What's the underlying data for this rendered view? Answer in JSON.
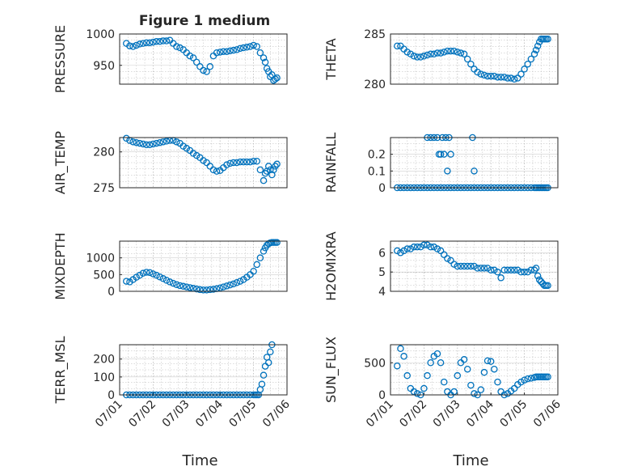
{
  "figure": {
    "title": "Figure 1 medium"
  },
  "style": {
    "marker_color": "#0072BD",
    "grid_color": "#b8b8b8",
    "axis_color": "#262626"
  },
  "chart_data": [
    {
      "type": "scatter",
      "ylabel": "PRESSURE",
      "ylim": [
        920,
        1000
      ],
      "yticks": [
        950,
        1000
      ],
      "xlim": [
        0,
        5
      ],
      "xticks": [],
      "xlabel": "",
      "series": [
        {
          "x": [
            0.2,
            0.3,
            0.4,
            0.5,
            0.6,
            0.7,
            0.8,
            0.9,
            1.0,
            1.1,
            1.2,
            1.3,
            1.4,
            1.5,
            1.6,
            1.7,
            1.8,
            1.9,
            2.0,
            2.1,
            2.2,
            2.3,
            2.4,
            2.5,
            2.6,
            2.7,
            2.8,
            2.9,
            3.0,
            3.1,
            3.2,
            3.3,
            3.4,
            3.5,
            3.6,
            3.7,
            3.8,
            3.9,
            4.0,
            4.1,
            4.2,
            4.3,
            4.35,
            4.4,
            4.45,
            4.5,
            4.55,
            4.6,
            4.65,
            4.7
          ],
          "y": [
            985,
            981,
            980,
            982,
            984,
            985,
            986,
            986,
            987,
            988,
            988,
            989,
            989,
            990,
            985,
            980,
            978,
            975,
            970,
            965,
            962,
            955,
            948,
            942,
            940,
            948,
            965,
            970,
            971,
            972,
            972,
            973,
            974,
            975,
            977,
            978,
            979,
            980,
            982,
            980,
            970,
            962,
            955,
            945,
            940,
            932,
            935,
            926,
            928,
            930
          ]
        }
      ]
    },
    {
      "type": "scatter",
      "ylabel": "THETA",
      "ylim": [
        280,
        285
      ],
      "yticks": [
        280,
        285
      ],
      "xlim": [
        0,
        5
      ],
      "xticks": [],
      "xlabel": "",
      "series": [
        {
          "x": [
            0.2,
            0.3,
            0.4,
            0.5,
            0.6,
            0.7,
            0.8,
            0.9,
            1.0,
            1.1,
            1.2,
            1.3,
            1.4,
            1.5,
            1.6,
            1.7,
            1.8,
            1.9,
            2.0,
            2.1,
            2.2,
            2.3,
            2.4,
            2.5,
            2.6,
            2.7,
            2.8,
            2.9,
            3.0,
            3.1,
            3.2,
            3.3,
            3.4,
            3.5,
            3.6,
            3.7,
            3.8,
            3.9,
            4.0,
            4.1,
            4.2,
            4.3,
            4.35,
            4.4,
            4.45,
            4.5,
            4.55,
            4.6,
            4.65,
            4.7
          ],
          "y": [
            283.8,
            283.8,
            283.5,
            283.2,
            283.0,
            282.8,
            282.7,
            282.7,
            282.8,
            282.9,
            283.0,
            283.0,
            283.1,
            283.1,
            283.2,
            283.3,
            283.3,
            283.3,
            283.2,
            283.1,
            283.0,
            282.5,
            282.0,
            281.5,
            281.2,
            281.0,
            280.9,
            280.8,
            280.8,
            280.8,
            280.7,
            280.7,
            280.7,
            280.6,
            280.6,
            280.5,
            280.6,
            281.0,
            281.5,
            282.0,
            282.5,
            283.0,
            283.4,
            283.8,
            284.2,
            284.5,
            284.5,
            284.5,
            284.5,
            284.5
          ]
        }
      ]
    },
    {
      "type": "scatter",
      "ylabel": "AIR_TEMP",
      "ylim": [
        275,
        282
      ],
      "yticks": [
        275,
        280
      ],
      "xlim": [
        0,
        5
      ],
      "xticks": [],
      "xlabel": "",
      "series": [
        {
          "x": [
            0.2,
            0.3,
            0.4,
            0.5,
            0.6,
            0.7,
            0.8,
            0.9,
            1.0,
            1.1,
            1.2,
            1.3,
            1.4,
            1.5,
            1.6,
            1.7,
            1.8,
            1.9,
            2.0,
            2.1,
            2.2,
            2.3,
            2.4,
            2.5,
            2.6,
            2.7,
            2.8,
            2.9,
            3.0,
            3.1,
            3.2,
            3.3,
            3.4,
            3.5,
            3.6,
            3.7,
            3.8,
            3.9,
            4.0,
            4.1,
            4.2,
            4.3,
            4.35,
            4.4,
            4.45,
            4.5,
            4.55,
            4.6,
            4.65,
            4.7
          ],
          "y": [
            281.9,
            281.6,
            281.4,
            281.3,
            281.2,
            281.1,
            281.0,
            281.0,
            281.1,
            281.2,
            281.3,
            281.4,
            281.5,
            281.6,
            281.6,
            281.4,
            281.2,
            280.8,
            280.5,
            280.2,
            279.8,
            279.5,
            279.2,
            278.8,
            278.5,
            278.0,
            277.5,
            277.3,
            277.4,
            277.8,
            278.2,
            278.4,
            278.5,
            278.5,
            278.6,
            278.6,
            278.6,
            278.6,
            278.7,
            278.7,
            277.5,
            276.0,
            277.0,
            277.3,
            278.0,
            277.5,
            276.8,
            277.5,
            278.0,
            278.3
          ]
        }
      ]
    },
    {
      "type": "scatter",
      "ylabel": "RAINFALL",
      "ylim": [
        0,
        0.3
      ],
      "yticks": [
        0,
        0.1,
        0.2
      ],
      "xlim": [
        0,
        5
      ],
      "xticks": [],
      "xlabel": "",
      "series": [
        {
          "x": [
            0.2,
            0.3,
            0.4,
            0.5,
            0.6,
            0.7,
            0.8,
            0.9,
            1.0,
            1.1,
            1.2,
            1.3,
            1.4,
            1.5,
            1.6,
            1.7,
            1.8,
            1.9,
            2.0,
            2.1,
            2.2,
            2.3,
            2.4,
            2.5,
            2.6,
            2.7,
            2.8,
            2.9,
            3.0,
            3.1,
            3.2,
            3.3,
            3.4,
            3.5,
            3.6,
            3.7,
            3.8,
            3.9,
            4.0,
            4.1,
            4.2,
            4.3,
            4.35,
            4.4,
            4.45,
            4.5,
            4.55,
            4.6,
            4.65,
            4.7,
            1.1,
            1.2,
            1.3,
            1.4,
            1.45,
            1.5,
            1.55,
            1.6,
            1.65,
            1.7,
            1.75,
            1.8,
            2.45,
            2.5
          ],
          "y": [
            0,
            0,
            0,
            0,
            0,
            0,
            0,
            0,
            0,
            0,
            0,
            0,
            0,
            0,
            0,
            0,
            0,
            0,
            0,
            0,
            0,
            0,
            0,
            0,
            0,
            0,
            0,
            0,
            0,
            0,
            0,
            0,
            0,
            0,
            0,
            0,
            0,
            0,
            0,
            0,
            0,
            0,
            0,
            0,
            0,
            0,
            0,
            0,
            0,
            0,
            0.3,
            0.3,
            0.3,
            0.3,
            0.2,
            0.2,
            0.3,
            0.2,
            0.3,
            0.1,
            0.3,
            0.2,
            0.3,
            0.1
          ]
        }
      ]
    },
    {
      "type": "scatter",
      "ylabel": "MIXDEPTH",
      "ylim": [
        0,
        1500
      ],
      "yticks": [
        0,
        500,
        1000
      ],
      "xlim": [
        0,
        5
      ],
      "xticks": [],
      "xlabel": "",
      "series": [
        {
          "x": [
            0.2,
            0.3,
            0.4,
            0.5,
            0.6,
            0.7,
            0.8,
            0.9,
            1.0,
            1.1,
            1.2,
            1.3,
            1.4,
            1.5,
            1.6,
            1.7,
            1.8,
            1.9,
            2.0,
            2.1,
            2.2,
            2.3,
            2.4,
            2.5,
            2.6,
            2.7,
            2.8,
            2.9,
            3.0,
            3.1,
            3.2,
            3.3,
            3.4,
            3.5,
            3.6,
            3.7,
            3.8,
            3.9,
            4.0,
            4.1,
            4.2,
            4.3,
            4.35,
            4.4,
            4.45,
            4.5,
            4.55,
            4.6,
            4.65,
            4.7
          ],
          "y": [
            300,
            280,
            350,
            420,
            480,
            540,
            570,
            560,
            520,
            480,
            430,
            380,
            330,
            280,
            240,
            200,
            170,
            150,
            130,
            110,
            90,
            70,
            50,
            40,
            40,
            50,
            60,
            80,
            100,
            130,
            160,
            190,
            220,
            260,
            300,
            350,
            420,
            500,
            600,
            800,
            1000,
            1200,
            1300,
            1380,
            1420,
            1450,
            1460,
            1460,
            1460,
            1460
          ]
        }
      ]
    },
    {
      "type": "scatter",
      "ylabel": "H2OMIXRA",
      "ylim": [
        4,
        6.6
      ],
      "yticks": [
        4,
        5,
        6
      ],
      "xlim": [
        0,
        5
      ],
      "xticks": [],
      "xlabel": "",
      "series": [
        {
          "x": [
            0.2,
            0.3,
            0.4,
            0.5,
            0.6,
            0.7,
            0.8,
            0.9,
            1.0,
            1.1,
            1.2,
            1.3,
            1.4,
            1.5,
            1.6,
            1.7,
            1.8,
            1.9,
            2.0,
            2.1,
            2.2,
            2.3,
            2.4,
            2.5,
            2.6,
            2.7,
            2.8,
            2.9,
            3.0,
            3.1,
            3.2,
            3.3,
            3.4,
            3.5,
            3.6,
            3.7,
            3.8,
            3.9,
            4.0,
            4.1,
            4.2,
            4.3,
            4.35,
            4.4,
            4.45,
            4.5,
            4.55,
            4.6,
            4.65,
            4.7
          ],
          "y": [
            6.1,
            6.0,
            6.1,
            6.2,
            6.2,
            6.3,
            6.3,
            6.3,
            6.4,
            6.4,
            6.3,
            6.3,
            6.2,
            6.1,
            5.9,
            5.7,
            5.6,
            5.4,
            5.3,
            5.3,
            5.3,
            5.3,
            5.3,
            5.3,
            5.2,
            5.2,
            5.2,
            5.2,
            5.1,
            5.1,
            5.0,
            4.7,
            5.1,
            5.1,
            5.1,
            5.1,
            5.1,
            5.0,
            5.0,
            5.0,
            5.1,
            5.1,
            5.2,
            4.8,
            4.6,
            4.5,
            4.4,
            4.3,
            4.3,
            4.3
          ]
        }
      ]
    },
    {
      "type": "scatter",
      "ylabel": "TERR_MSL",
      "ylim": [
        0,
        280
      ],
      "yticks": [
        0,
        100,
        200
      ],
      "xlim": [
        0,
        5
      ],
      "xticks": [
        0,
        1,
        2,
        3,
        4,
        5
      ],
      "xticklabels": [
        "07/01",
        "07/02",
        "07/03",
        "07/04",
        "07/05",
        "07/06"
      ],
      "xlabel": "Time",
      "series": [
        {
          "x": [
            0.2,
            0.3,
            0.4,
            0.5,
            0.6,
            0.7,
            0.8,
            0.9,
            1.0,
            1.1,
            1.2,
            1.3,
            1.4,
            1.5,
            1.6,
            1.7,
            1.8,
            1.9,
            2.0,
            2.1,
            2.2,
            2.3,
            2.4,
            2.5,
            2.6,
            2.7,
            2.8,
            2.9,
            3.0,
            3.1,
            3.2,
            3.3,
            3.4,
            3.5,
            3.6,
            3.7,
            3.8,
            3.9,
            4.0,
            4.05,
            4.1,
            4.15,
            4.2,
            4.25,
            4.3,
            4.35,
            4.4,
            4.45,
            4.5,
            4.55
          ],
          "y": [
            0,
            0,
            0,
            0,
            0,
            0,
            0,
            0,
            0,
            0,
            0,
            0,
            0,
            0,
            0,
            0,
            0,
            0,
            0,
            0,
            0,
            0,
            0,
            0,
            0,
            0,
            0,
            0,
            0,
            0,
            0,
            0,
            0,
            0,
            0,
            0,
            0,
            0,
            0,
            0,
            0,
            0,
            30,
            60,
            110,
            160,
            210,
            180,
            240,
            280
          ]
        }
      ]
    },
    {
      "type": "scatter",
      "ylabel": "SUN_FLUX",
      "ylim": [
        0,
        780
      ],
      "yticks": [
        0,
        500
      ],
      "xlim": [
        0,
        5
      ],
      "xticks": [
        0,
        1,
        2,
        3,
        4,
        5
      ],
      "xticklabels": [
        "07/01",
        "07/02",
        "07/03",
        "07/04",
        "07/05",
        "07/06"
      ],
      "xlabel": "Time",
      "series": [
        {
          "x": [
            0.2,
            0.3,
            0.4,
            0.5,
            0.6,
            0.7,
            0.8,
            0.9,
            1.0,
            1.1,
            1.2,
            1.3,
            1.4,
            1.5,
            1.6,
            1.7,
            1.8,
            1.9,
            2.0,
            2.1,
            2.2,
            2.3,
            2.4,
            2.5,
            2.6,
            2.7,
            2.8,
            2.9,
            3.0,
            3.1,
            3.2,
            3.3,
            3.4,
            3.5,
            3.6,
            3.7,
            3.8,
            3.9,
            4.0,
            4.1,
            4.2,
            4.3,
            4.35,
            4.4,
            4.45,
            4.5,
            4.55,
            4.6,
            4.65,
            4.7
          ],
          "y": [
            450,
            720,
            600,
            300,
            100,
            50,
            20,
            0,
            100,
            300,
            500,
            600,
            640,
            500,
            200,
            50,
            0,
            50,
            300,
            500,
            550,
            400,
            150,
            20,
            0,
            80,
            350,
            530,
            520,
            400,
            200,
            50,
            0,
            20,
            60,
            100,
            160,
            200,
            230,
            250,
            260,
            270,
            280,
            280,
            280,
            280,
            280,
            280,
            280,
            280
          ]
        }
      ]
    }
  ]
}
